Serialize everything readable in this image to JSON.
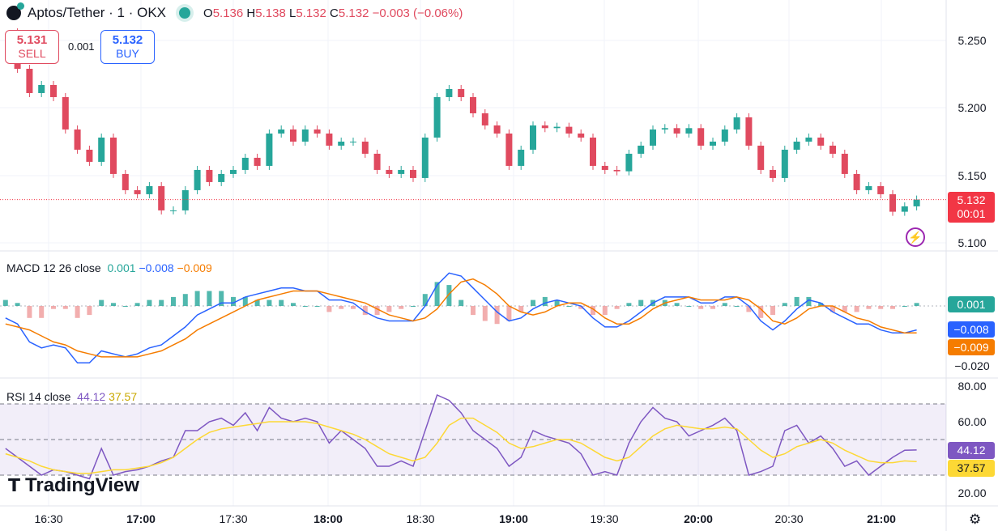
{
  "header": {
    "symbol": "Aptos/Tether · 1 · OKX",
    "o_label": "O",
    "o": "5.136",
    "h_label": "H",
    "h": "5.138",
    "l_label": "L",
    "l": "5.132",
    "c_label": "C",
    "c": "5.132",
    "change": "−0.003 (−0.06%)"
  },
  "trade": {
    "sell_price": "5.131",
    "sell_label": "SELL",
    "spread": "0.001",
    "buy_price": "5.132",
    "buy_label": "BUY"
  },
  "price_axis": [
    "5.250",
    "5.200",
    "5.150",
    "5.100"
  ],
  "price_tag": {
    "price": "5.132",
    "countdown": "00:01"
  },
  "macd": {
    "label": "MACD 12 26 close",
    "hist": "0.001",
    "macd": "−0.008",
    "signal": "−0.009",
    "axis_low": "−0.020"
  },
  "rsi": {
    "label": "RSI 14 close",
    "rsi": "44.12",
    "ma": "37.57",
    "axis": [
      "80.00",
      "60.00",
      "20.00"
    ]
  },
  "time_axis": [
    {
      "t": "16:30",
      "bold": false
    },
    {
      "t": "17:00",
      "bold": true
    },
    {
      "t": "17:30",
      "bold": false
    },
    {
      "t": "18:00",
      "bold": true
    },
    {
      "t": "18:30",
      "bold": false
    },
    {
      "t": "19:00",
      "bold": true
    },
    {
      "t": "19:30",
      "bold": false
    },
    {
      "t": "20:00",
      "bold": true
    },
    {
      "t": "20:30",
      "bold": false
    },
    {
      "t": "21:00",
      "bold": true
    }
  ],
  "brand": "TradingView",
  "colors": {
    "up": "#26a69a",
    "down": "#e04a5f",
    "macd": "#2962ff",
    "signal": "#f57c00",
    "rsi": "#7e57c2",
    "rsi_ma": "#fdd835"
  },
  "chart_data": {
    "type": "line",
    "title": "Aptos/Tether · 1 · OKX",
    "time_start": "16:16",
    "time_end": "21:12",
    "ylim": [
      5.1,
      5.25
    ],
    "close": [
      5.256,
      5.229,
      5.211,
      5.217,
      5.208,
      5.184,
      5.169,
      5.16,
      5.178,
      5.151,
      5.139,
      5.136,
      5.142,
      5.124,
      5.124,
      5.139,
      5.154,
      5.145,
      5.151,
      5.154,
      5.163,
      5.157,
      5.181,
      5.184,
      5.175,
      5.184,
      5.181,
      5.172,
      5.175,
      5.175,
      5.166,
      5.154,
      5.151,
      5.154,
      5.148,
      5.178,
      5.208,
      5.214,
      5.208,
      5.196,
      5.187,
      5.181,
      5.157,
      5.169,
      5.187,
      5.185,
      5.186,
      5.181,
      5.178,
      5.157,
      5.154,
      5.153,
      5.166,
      5.172,
      5.184,
      5.185,
      5.181,
      5.185,
      5.172,
      5.175,
      5.184,
      5.193,
      5.172,
      5.154,
      5.148,
      5.169,
      5.175,
      5.178,
      5.172,
      5.166,
      5.151,
      5.139,
      5.142,
      5.136,
      5.123,
      5.127,
      5.132
    ],
    "macd": [
      -0.004,
      -0.006,
      -0.012,
      -0.014,
      -0.013,
      -0.014,
      -0.019,
      -0.019,
      -0.015,
      -0.016,
      -0.017,
      -0.016,
      -0.014,
      -0.013,
      -0.01,
      -0.007,
      -0.003,
      -0.001,
      0.001,
      0.001,
      0.003,
      0.004,
      0.005,
      0.006,
      0.006,
      0.005,
      0.005,
      0.002,
      0.002,
      0.001,
      -0.002,
      -0.004,
      -0.005,
      -0.005,
      -0.005,
      0.0,
      0.007,
      0.011,
      0.01,
      0.006,
      0.002,
      -0.002,
      -0.005,
      -0.004,
      -0.001,
      0.001,
      0.002,
      0.001,
      0.0,
      -0.004,
      -0.007,
      -0.007,
      -0.005,
      -0.002,
      0.001,
      0.003,
      0.003,
      0.003,
      0.001,
      0.001,
      0.003,
      0.003,
      0.0,
      -0.005,
      -0.008,
      -0.005,
      -0.001,
      0.002,
      0.001,
      -0.002,
      -0.004,
      -0.006,
      -0.006,
      -0.008,
      -0.009,
      -0.009,
      -0.008
    ],
    "signal": [
      -0.006,
      -0.007,
      -0.008,
      -0.01,
      -0.012,
      -0.013,
      -0.015,
      -0.016,
      -0.017,
      -0.017,
      -0.017,
      -0.017,
      -0.016,
      -0.015,
      -0.013,
      -0.011,
      -0.008,
      -0.006,
      -0.004,
      -0.002,
      0.0,
      0.002,
      0.003,
      0.004,
      0.005,
      0.005,
      0.005,
      0.004,
      0.003,
      0.002,
      0.001,
      -0.001,
      -0.003,
      -0.004,
      -0.005,
      -0.004,
      -0.001,
      0.004,
      0.008,
      0.009,
      0.007,
      0.004,
      0.0,
      -0.002,
      -0.003,
      -0.002,
      0.0,
      0.001,
      0.001,
      -0.001,
      -0.004,
      -0.006,
      -0.006,
      -0.004,
      -0.001,
      0.001,
      0.002,
      0.003,
      0.002,
      0.002,
      0.002,
      0.003,
      0.002,
      -0.001,
      -0.005,
      -0.006,
      -0.004,
      -0.001,
      0.0,
      0.0,
      -0.002,
      -0.004,
      -0.005,
      -0.007,
      -0.008,
      -0.009,
      -0.009
    ],
    "macd_ylim": [
      -0.024,
      0.014
    ],
    "rsi": [
      45,
      40,
      35,
      30,
      33,
      32,
      30,
      28,
      45,
      30,
      32,
      33,
      35,
      38,
      40,
      55,
      55,
      60,
      62,
      58,
      65,
      55,
      68,
      62,
      60,
      62,
      60,
      48,
      55,
      50,
      45,
      35,
      35,
      38,
      35,
      55,
      75,
      72,
      65,
      55,
      50,
      45,
      35,
      40,
      55,
      52,
      50,
      48,
      42,
      30,
      32,
      30,
      48,
      60,
      68,
      62,
      60,
      52,
      55,
      58,
      62,
      55,
      30,
      32,
      35,
      55,
      58,
      48,
      52,
      45,
      35,
      38,
      30,
      35,
      40,
      44,
      44.12
    ],
    "rsi_ma": [
      42,
      40,
      38,
      35,
      33,
      32,
      31,
      31,
      32,
      33,
      33,
      34,
      35,
      37,
      40,
      45,
      50,
      54,
      56,
      57,
      58,
      59,
      60,
      60,
      60,
      60,
      59,
      57,
      55,
      53,
      50,
      46,
      42,
      40,
      38,
      40,
      48,
      58,
      62,
      62,
      58,
      54,
      48,
      45,
      46,
      48,
      50,
      50,
      48,
      44,
      40,
      38,
      40,
      46,
      52,
      56,
      58,
      57,
      56,
      56,
      57,
      56,
      50,
      44,
      40,
      42,
      46,
      48,
      50,
      48,
      44,
      41,
      38,
      37,
      37,
      38,
      37.57
    ],
    "rsi_bands": [
      30,
      50,
      70
    ],
    "grid": true
  }
}
